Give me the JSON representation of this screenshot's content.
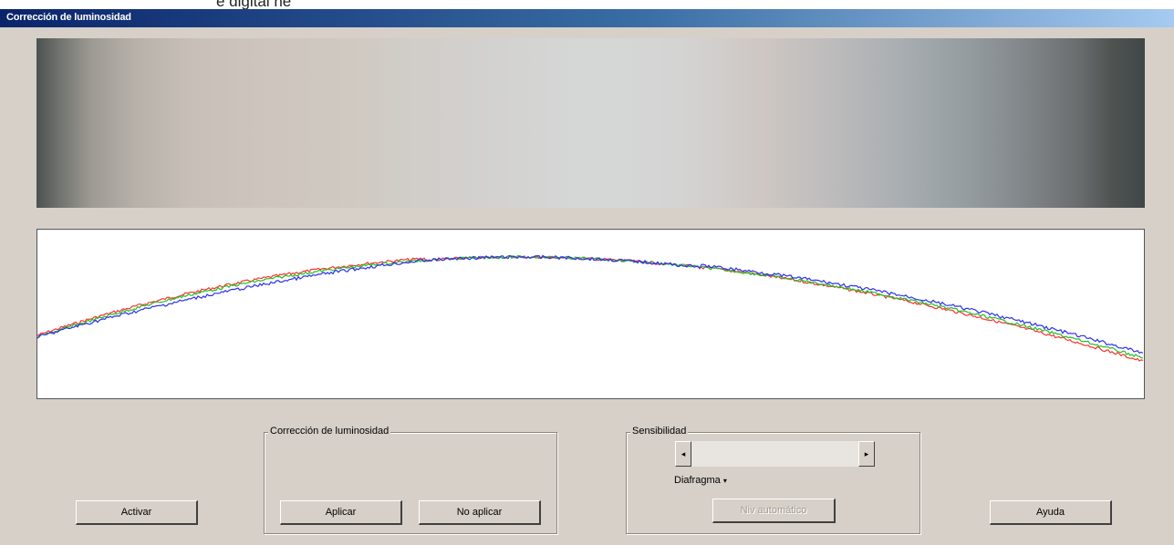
{
  "top_clip_text": "e digital ne",
  "window": {
    "title": "Corrección de luminosidad"
  },
  "graph": {
    "colors": {
      "red": "#ff3030",
      "green": "#22c022",
      "blue": "#2e2ef2"
    }
  },
  "buttons": {
    "activar": "Activar",
    "ayuda": "Ayuda"
  },
  "correction_group": {
    "legend": "Corrección de luminosidad",
    "apply": "Aplicar",
    "no_apply": "No aplicar"
  },
  "sensitivity_group": {
    "legend": "Sensibilidad",
    "scroll_left_glyph": "◂",
    "scroll_right_glyph": "▸",
    "diaphragm_label": "Diafragma",
    "diaphragm_icon": "caret-down-icon",
    "auto_button": "Niv automático",
    "auto_disabled": true
  }
}
